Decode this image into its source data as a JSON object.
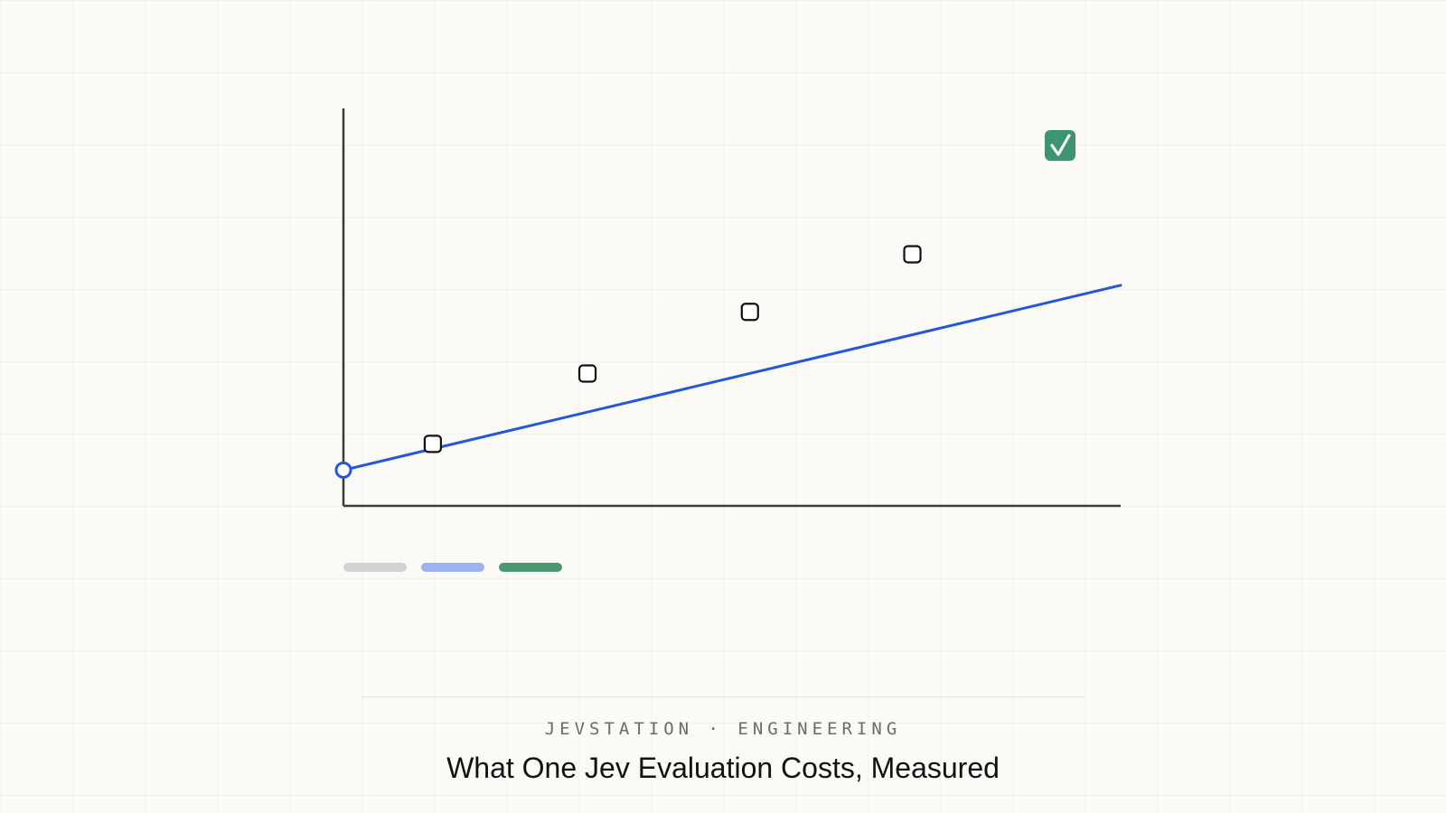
{
  "brand": {
    "eyebrow": "JEVSTATION · ENGINEERING",
    "headline": "What One Jev Evaluation Costs, Measured"
  },
  "colors": {
    "axis": "#3a3a3a",
    "fit_line": "#2356dc",
    "marker_stroke": "#111111",
    "check_badge": "#3f9470",
    "legend": [
      "#d2d2d2",
      "#9fb1ee",
      "#4a9670"
    ]
  },
  "icons": {
    "badge": "check-badge-icon",
    "intercept": "open-circle-marker",
    "points": "rounded-square-marker"
  },
  "chart_data": {
    "type": "scatter",
    "xlim": [
      0,
      100
    ],
    "ylim": [
      0,
      100
    ],
    "grid": false,
    "legend": "bottom-left",
    "fit": {
      "slope": 0.465,
      "intercept": 9
    },
    "points": [
      {
        "x": 11.5,
        "y": 15.6
      },
      {
        "x": 31.4,
        "y": 33.3
      },
      {
        "x": 52.3,
        "y": 48.8
      },
      {
        "x": 73.2,
        "y": 63.3
      }
    ],
    "series_swatches": 3
  }
}
